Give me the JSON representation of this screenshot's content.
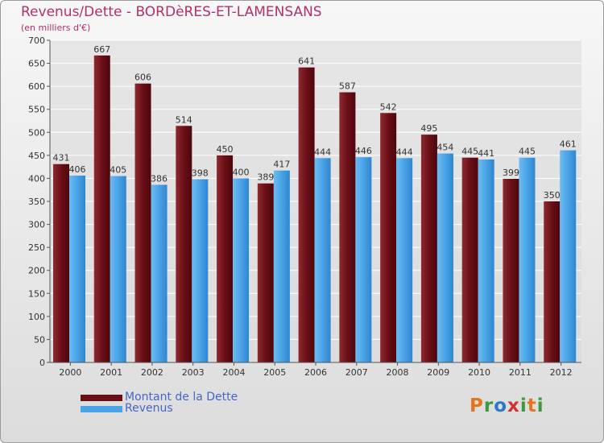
{
  "title": "Revenus/Dette - BORDèRES-ET-LAMENSANS",
  "subtitle": "(en milliers d'€)",
  "logo": {
    "letters": [
      "P",
      "r",
      "o",
      "x",
      "i",
      "t",
      "i"
    ],
    "colors": [
      "#e2761f",
      "#3c9a3c",
      "#2a78c8",
      "#d43030",
      "#3c9a3c",
      "#e2761f",
      "#3c9a3c"
    ]
  },
  "legend": [
    {
      "label": "Montant de la Dette",
      "color": "#6b0f16"
    },
    {
      "label": "Revenus",
      "color": "#4aa3e6"
    }
  ],
  "chart_data": {
    "type": "bar",
    "title": "Revenus/Dette - BORDèRES-ET-LAMENSANS",
    "subtitle": "(en milliers d'€)",
    "categories": [
      "2000",
      "2001",
      "2002",
      "2003",
      "2004",
      "2005",
      "2006",
      "2007",
      "2008",
      "2009",
      "2010",
      "2011",
      "2012"
    ],
    "series": [
      {
        "name": "Montant de la Dette",
        "color": "#6b0f16",
        "values": [
          431,
          667,
          606,
          514,
          450,
          389,
          641,
          587,
          542,
          495,
          445,
          399,
          350
        ]
      },
      {
        "name": "Revenus",
        "color": "#4aa3e6",
        "values": [
          406,
          405,
          386,
          398,
          400,
          417,
          444,
          446,
          444,
          454,
          441,
          445,
          461
        ]
      }
    ],
    "ylim": [
      0,
      700
    ],
    "yticks": [
      0,
      50,
      100,
      150,
      200,
      250,
      300,
      350,
      400,
      450,
      500,
      550,
      600,
      650,
      700
    ],
    "grid": true,
    "legend_position": "bottom-left",
    "xlabel": "",
    "ylabel": ""
  }
}
